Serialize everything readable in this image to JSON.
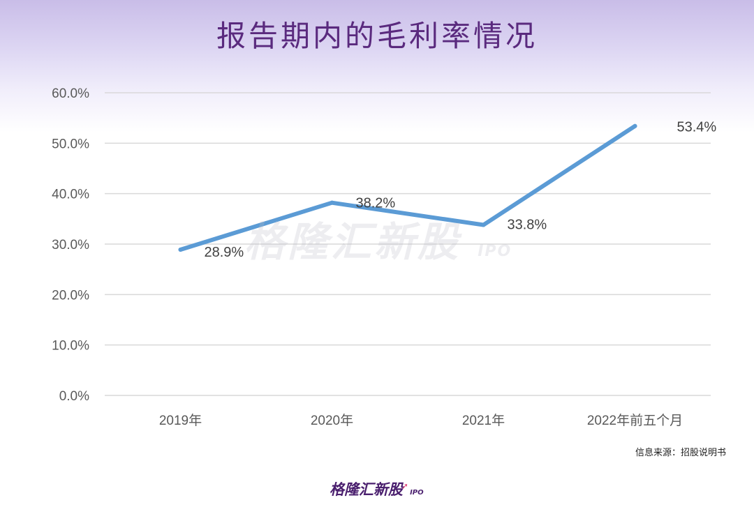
{
  "title": "报告期内的毛利率情况",
  "source": "信息来源：招股说明书",
  "watermark": {
    "main": "格隆汇新股",
    "sub": "IPO"
  },
  "logo": {
    "main": "格隆汇新股",
    "sub": "IPO"
  },
  "colors": {
    "line": "#5b9bd5",
    "title": "#5a2a7e",
    "grid": "#d9d9d9"
  },
  "chart_data": {
    "type": "line",
    "title": "报告期内的毛利率情况",
    "categories": [
      "2019年",
      "2020年",
      "2021年",
      "2022年前五个月"
    ],
    "series": [
      {
        "values": [
          28.9,
          38.2,
          33.8,
          53.4
        ]
      }
    ],
    "data_labels": [
      "28.9%",
      "38.2%",
      "33.8%",
      "53.4%"
    ],
    "yticks": [
      "0.0%",
      "10.0%",
      "20.0%",
      "30.0%",
      "40.0%",
      "50.0%",
      "60.0%"
    ],
    "ylim": [
      0,
      60
    ],
    "grid": true,
    "legend": "none"
  }
}
